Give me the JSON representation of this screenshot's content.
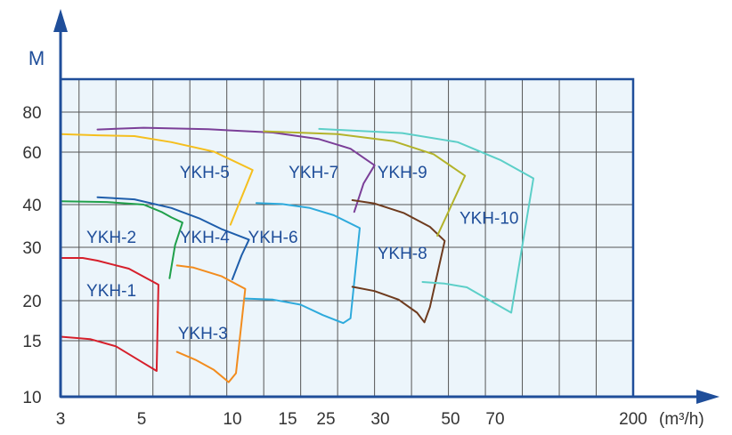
{
  "chart_data": {
    "type": "line",
    "title": "",
    "ylabel": "M",
    "xlabel": "",
    "x_unit": "(m³/h)",
    "x_ticks": [
      "3",
      "5",
      "10",
      "15",
      "25",
      "30",
      "50",
      "70",
      "200"
    ],
    "y_ticks": [
      "10",
      "15",
      "20",
      "30",
      "40",
      "60",
      "80"
    ],
    "grid": true,
    "plot_background": "#ecf5fb",
    "frame_color": "#1f4e9a",
    "grid_color": "#555555",
    "series": [
      {
        "name": "YKH-1",
        "color": "#d61f2b",
        "points": [
          [
            3.0,
            15.5
          ],
          [
            4.6,
            15.2
          ],
          [
            6.0,
            14.5
          ],
          [
            7.3,
            13.2
          ],
          [
            8.2,
            12.3
          ],
          [
            8.3,
            23.0
          ],
          [
            6.7,
            26.0
          ],
          [
            5.0,
            27.5
          ],
          [
            4.2,
            28.0
          ],
          [
            3.0,
            28.0
          ]
        ]
      },
      {
        "name": "YKH-2",
        "color": "#20a04b",
        "points": [
          [
            8.9,
            24.2
          ],
          [
            9.2,
            30.5
          ],
          [
            9.6,
            35.8
          ],
          [
            9.0,
            37.0
          ],
          [
            8.5,
            38.2
          ],
          [
            7.5,
            40.0
          ],
          [
            5.5,
            41.0
          ],
          [
            3.0,
            41.3
          ]
        ]
      },
      {
        "name": "YKH-3",
        "color": "#f28c1e",
        "points": [
          [
            9.3,
            14.0
          ],
          [
            10.3,
            13.3
          ],
          [
            11.3,
            12.4
          ],
          [
            12.1,
            11.3
          ],
          [
            12.5,
            12.1
          ],
          [
            13.0,
            22.2
          ],
          [
            11.7,
            24.6
          ],
          [
            10.2,
            26.2
          ],
          [
            9.3,
            26.6
          ]
        ]
      },
      {
        "name": "YKH-4",
        "color": "#1f5eab",
        "points": [
          [
            5.0,
            42.8
          ],
          [
            7.0,
            42.0
          ],
          [
            9.0,
            39.2
          ],
          [
            10.5,
            36.8
          ],
          [
            11.7,
            34.3
          ],
          [
            13.2,
            31.8
          ],
          [
            12.8,
            28.5
          ],
          [
            12.3,
            24.0
          ]
        ]
      },
      {
        "name": "YKH-5",
        "color": "#f5bf1e",
        "points": [
          [
            3.0,
            69.0
          ],
          [
            5.0,
            68.4
          ],
          [
            7.0,
            68.0
          ],
          [
            9.0,
            65.0
          ],
          [
            11.3,
            60.2
          ],
          [
            13.4,
            53.2
          ],
          [
            12.2,
            35.3
          ]
        ]
      },
      {
        "name": "YKH-6",
        "color": "#2eaadc",
        "points": [
          [
            13.0,
            20.4
          ],
          [
            14.5,
            20.2
          ],
          [
            16.0,
            19.5
          ],
          [
            17.2,
            18.2
          ],
          [
            18.3,
            17.2
          ],
          [
            18.7,
            17.8
          ],
          [
            19.2,
            34.5
          ],
          [
            17.8,
            37.5
          ],
          [
            16.5,
            39.2
          ],
          [
            15.0,
            40.2
          ],
          [
            13.6,
            40.6
          ]
        ]
      },
      {
        "name": "YKH-7",
        "color": "#7b3f98",
        "points": [
          [
            5.0,
            71.3
          ],
          [
            7.5,
            72.2
          ],
          [
            11.0,
            71.4
          ],
          [
            14.5,
            69.8
          ],
          [
            17.0,
            66.5
          ],
          [
            18.7,
            61.7
          ],
          [
            20.0,
            55.0
          ],
          [
            19.4,
            48.0
          ],
          [
            18.9,
            38.3
          ]
        ]
      },
      {
        "name": "YKH-8",
        "color": "#6e3b1e",
        "points": [
          [
            18.8,
            22.6
          ],
          [
            20.0,
            21.8
          ],
          [
            21.3,
            20.2
          ],
          [
            22.3,
            18.5
          ],
          [
            22.7,
            17.3
          ],
          [
            23.0,
            19.2
          ],
          [
            23.8,
            31.5
          ],
          [
            23.0,
            34.8
          ],
          [
            21.6,
            38.0
          ],
          [
            20.0,
            40.4
          ],
          [
            18.8,
            41.7
          ]
        ]
      },
      {
        "name": "YKH-9",
        "color": "#b3b32a",
        "points": [
          [
            14.0,
            70.4
          ],
          [
            18.0,
            69.0
          ],
          [
            21.0,
            65.5
          ],
          [
            23.2,
            59.2
          ],
          [
            24.9,
            51.0
          ],
          [
            23.4,
            32.7
          ]
        ]
      },
      {
        "name": "YKH-10",
        "color": "#5ccfc8",
        "points": [
          [
            17.0,
            71.6
          ],
          [
            21.5,
            69.5
          ],
          [
            24.5,
            65.0
          ],
          [
            26.8,
            57.0
          ],
          [
            28.6,
            50.0
          ],
          [
            27.4,
            18.5
          ],
          [
            26.0,
            20.5
          ],
          [
            25.0,
            22.5
          ],
          [
            23.8,
            23.2
          ],
          [
            22.6,
            23.5
          ]
        ]
      }
    ],
    "labels": [
      {
        "text": "YKH-1",
        "x": 5.75,
        "y": 22.0
      },
      {
        "text": "YKH-2",
        "x": 5.75,
        "y": 32.5
      },
      {
        "text": "YKH-3",
        "x": 10.7,
        "y": 16.0
      },
      {
        "text": "YKH-4",
        "x": 10.8,
        "y": 32.5
      },
      {
        "text": "YKH-5",
        "x": 10.8,
        "y": 52.5
      },
      {
        "text": "YKH-6",
        "x": 14.5,
        "y": 32.5
      },
      {
        "text": "YKH-7",
        "x": 16.7,
        "y": 52.5
      },
      {
        "text": "YKH-8",
        "x": 21.5,
        "y": 29.0
      },
      {
        "text": "YKH-9",
        "x": 21.5,
        "y": 52.5
      },
      {
        "text": "YKH-10",
        "x": 26.2,
        "y": 37.0
      }
    ]
  }
}
